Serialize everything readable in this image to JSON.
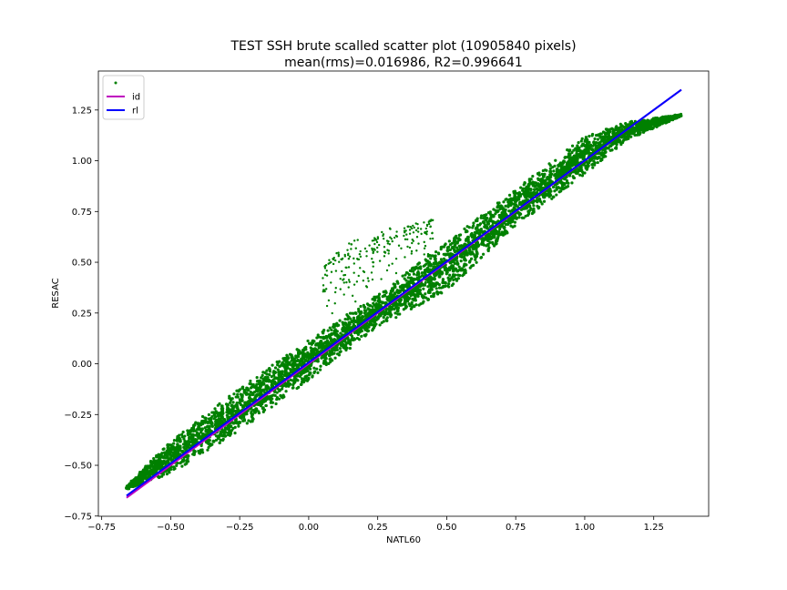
{
  "chart_data": {
    "type": "scatter",
    "title": "TEST SSH brute scalled scatter plot (10905840 pixels)",
    "subtitle": "mean(rms)=0.016986, R2=0.996641",
    "xlabel": "NATL60",
    "ylabel": "RESAC",
    "xlim": [
      -0.762,
      1.449
    ],
    "ylim": [
      -0.751,
      1.442
    ],
    "x_ticks": [
      {
        "value": -0.75,
        "label": "−0.75"
      },
      {
        "value": -0.5,
        "label": "−0.50"
      },
      {
        "value": -0.25,
        "label": "−0.25"
      },
      {
        "value": 0.0,
        "label": "0.00"
      },
      {
        "value": 0.25,
        "label": "0.25"
      },
      {
        "value": 0.5,
        "label": "0.50"
      },
      {
        "value": 0.75,
        "label": "0.75"
      },
      {
        "value": 1.0,
        "label": "1.00"
      },
      {
        "value": 1.25,
        "label": "1.25"
      }
    ],
    "y_ticks": [
      {
        "value": -0.75,
        "label": "−0.75"
      },
      {
        "value": -0.5,
        "label": "−0.50"
      },
      {
        "value": -0.25,
        "label": "−0.25"
      },
      {
        "value": 0.0,
        "label": "0.00"
      },
      {
        "value": 0.25,
        "label": "0.25"
      },
      {
        "value": 0.5,
        "label": "0.50"
      },
      {
        "value": 0.75,
        "label": "0.75"
      },
      {
        "value": 1.0,
        "label": "1.00"
      },
      {
        "value": 1.25,
        "label": "1.25"
      }
    ],
    "grid": false,
    "legend_position": "top-left",
    "series": [
      {
        "name": "",
        "kind": "scatter",
        "color": "#008000",
        "band": {
          "x": [
            -0.66,
            -0.5,
            -0.25,
            0.0,
            0.25,
            0.5,
            0.75,
            1.0,
            1.15,
            1.35
          ],
          "y_lower": [
            -0.62,
            -0.54,
            -0.33,
            -0.08,
            0.18,
            0.36,
            0.68,
            0.93,
            1.1,
            1.22
          ],
          "y_upper": [
            -0.6,
            -0.38,
            -0.12,
            0.12,
            0.34,
            0.6,
            0.86,
            1.12,
            1.19,
            1.23
          ]
        },
        "outlier_lobe": {
          "x": [
            0.05,
            0.1,
            0.15,
            0.2,
            0.3,
            0.4,
            0.45
          ],
          "y": [
            0.48,
            0.56,
            0.6,
            0.63,
            0.68,
            0.7,
            0.72
          ]
        }
      },
      {
        "name": "id",
        "kind": "line",
        "color": "#bf00bf",
        "x": [
          -0.66,
          1.35
        ],
        "y": [
          -0.66,
          1.35
        ]
      },
      {
        "name": "rl",
        "kind": "line",
        "color": "#0000ff",
        "x": [
          -0.66,
          1.35
        ],
        "y": [
          -0.65,
          1.35
        ]
      }
    ]
  }
}
